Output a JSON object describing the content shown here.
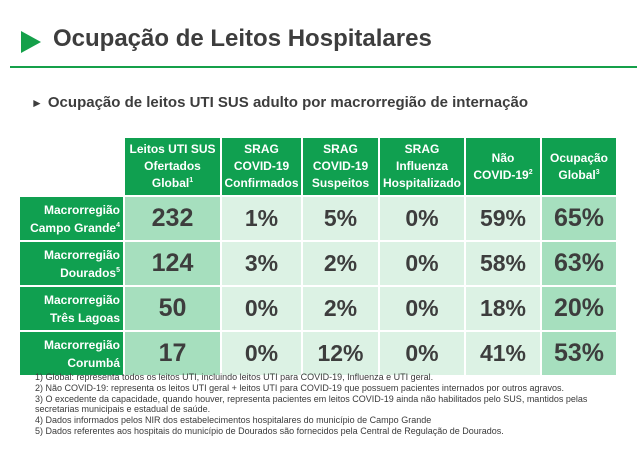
{
  "title": "Ocupação de Leitos Hospitalares",
  "subtitle": "Ocupação de leitos UTI SUS adulto por macrorregião de internação",
  "columns": [
    {
      "lines": [
        "Leitos UTI SUS",
        "Ofertados",
        "Global"
      ],
      "note": "1"
    },
    {
      "lines": [
        "SRAG",
        "COVID-19",
        "Confirmados"
      ],
      "note": ""
    },
    {
      "lines": [
        "SRAG",
        "COVID-19",
        "Suspeitos"
      ],
      "note": ""
    },
    {
      "lines": [
        "SRAG",
        "Influenza",
        "Hospitalizado"
      ],
      "note": ""
    },
    {
      "lines": [
        "Não",
        "COVID-19"
      ],
      "note": "2"
    },
    {
      "lines": [
        "Ocupação",
        "Global"
      ],
      "note": "3"
    }
  ],
  "rows": [
    {
      "region_line1": "Macrorregião",
      "region_line2": "Campo Grande",
      "note": "4",
      "values": [
        "232",
        "1%",
        "5%",
        "0%",
        "59%",
        "65%"
      ]
    },
    {
      "region_line1": "Macrorregião",
      "region_line2": "Dourados",
      "note": "5",
      "values": [
        "124",
        "3%",
        "2%",
        "0%",
        "58%",
        "63%"
      ]
    },
    {
      "region_line1": "Macrorregião",
      "region_line2": "Três Lagoas",
      "note": "",
      "values": [
        "50",
        "0%",
        "2%",
        "0%",
        "18%",
        "20%"
      ]
    },
    {
      "region_line1": "Macrorregião",
      "region_line2": "Corumbá",
      "note": "",
      "values": [
        "17",
        "0%",
        "12%",
        "0%",
        "41%",
        "53%"
      ]
    }
  ],
  "footnotes": [
    "1) Global: representa todos os leitos UTI, incluindo leitos UTI para COVID-19, Influenza e UTI geral.",
    "2) Não COVID-19: representa os leitos UTI geral + leitos UTI para COVID-19 que possuem pacientes internados por outros agravos.",
    "3) O excedente da capacidade, quando houver, representa pacientes em leitos COVID-19 ainda não habilitados pelo SUS, mantidos pelas secretarias municipais e estadual de saúde.",
    "4) Dados informados pelos NIR dos estabelecimentos hospitalares do município de Campo Grande",
    "5) Dados referentes aos hospitais do município de Dourados são fornecidos pela Central de Regulação de Dourados."
  ],
  "colors": {
    "accent": "#15a04a",
    "header": "#10a050",
    "highlight": "#a6dfbe",
    "light": "#dcf2e4"
  },
  "icons": {
    "title_marker": "play-triangle-icon",
    "subtitle_marker": "black-right-pointer-icon"
  }
}
